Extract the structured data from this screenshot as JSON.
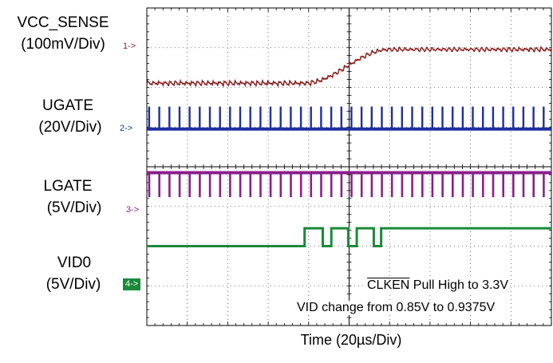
{
  "chart_data": {
    "type": "line",
    "title": "",
    "xlabel": "Time (20µs/Div)",
    "grid": true,
    "divisions": {
      "x": 10,
      "y": 8
    },
    "channels": [
      {
        "name": "VCC_SENSE",
        "scale": "(100mV/Div)",
        "marker": "1->",
        "color": "#8b1c1c",
        "description_values": {
          "before_step_div": 6.1,
          "after_step_div": 6.95,
          "transition_start_div": 3.9,
          "transition_end_div": 6.0
        }
      },
      {
        "name": "UGATE",
        "scale": "(20V/Div)",
        "marker": "2->",
        "color": "#1f2f9e",
        "description_values": {
          "baseline_div": 4.95,
          "pulse_top_div": 5.5
        }
      },
      {
        "name": "LGATE",
        "scale": "(5V/Div)",
        "marker": "3->",
        "color": "#8b1f8b",
        "description_values": {
          "high_div": 3.85,
          "low_div": 3.25
        }
      },
      {
        "name": "VID0",
        "scale": "(5V/Div)",
        "marker": "4->",
        "color": "#1a8a3a",
        "description_values": {
          "low_div": 2.0,
          "high_div": 2.45,
          "toggle_start_div": 3.9,
          "toggle_end_div": 6.0
        }
      }
    ],
    "annotations": [
      "CLKEN Pull High to 3.3V",
      "VID change from 0.85V to 0.9375V"
    ]
  },
  "labels": {
    "ch1_name": "VCC_SENSE",
    "ch1_scale": "(100mV/Div)",
    "ch1_marker": "1->",
    "ch2_name": "UGATE",
    "ch2_scale": "(20V/Div)",
    "ch2_marker": "2->",
    "ch3_name": "LGATE",
    "ch3_scale": "(5V/Div)",
    "ch3_marker": "3->",
    "ch4_name": "VID0",
    "ch4_scale": "(5V/Div)",
    "ch4_marker": "4->",
    "note_clken_name": "CLKEN",
    "note_clken_rest": " Pull High to 3.3V",
    "note_vid": "VID change from 0.85V to 0.9375V",
    "time_label": "Time (20µs/Div)"
  },
  "colors": {
    "ch1": "#8b1c1c",
    "ch2": "#1f2f9e",
    "ch3": "#8b1f8b",
    "ch4": "#1a8a3a"
  }
}
